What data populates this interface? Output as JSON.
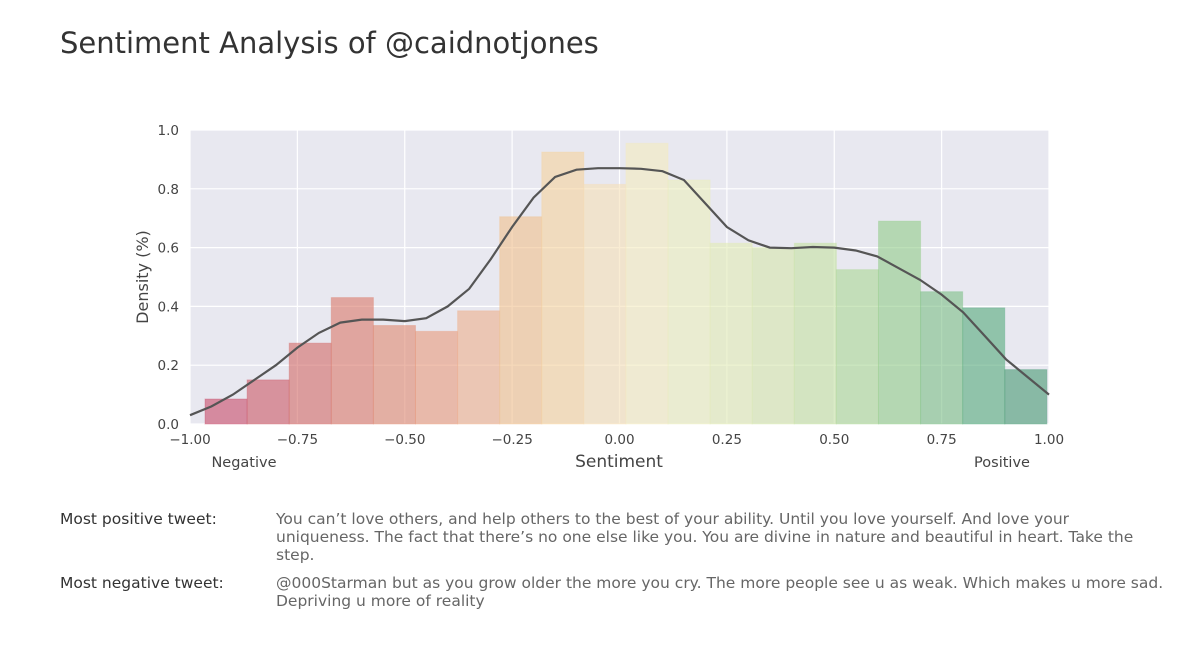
{
  "page": {
    "title": "Sentiment Analysis of @caidnotjones"
  },
  "chart_data": {
    "type": "bar",
    "title": "",
    "xlabel": "Sentiment",
    "ylabel": "Density (%)",
    "xlim": [
      -1.0,
      1.0
    ],
    "ylim": [
      0,
      1.0
    ],
    "x_ticks": [
      -1.0,
      -0.75,
      -0.5,
      -0.25,
      0.0,
      0.25,
      0.5,
      0.75,
      1.0
    ],
    "x_tick_labels": [
      "−1.00",
      "−0.75",
      "−0.50",
      "−0.25",
      "0.00",
      "0.25",
      "0.50",
      "0.75",
      "1.00"
    ],
    "y_ticks": [
      0.0,
      0.2,
      0.4,
      0.6,
      0.8,
      1.0
    ],
    "y_tick_labels": [
      "0.0",
      "0.2",
      "0.4",
      "0.6",
      "0.8",
      "1.0"
    ],
    "grid": true,
    "annotations": {
      "left": "Negative",
      "right": "Positive"
    },
    "histogram": {
      "bins": [
        {
          "x0": -0.965,
          "x1": -0.867,
          "value": 0.085,
          "color": "#c9506e"
        },
        {
          "x0": -0.867,
          "x1": -0.769,
          "value": 0.15,
          "color": "#cd5e6b"
        },
        {
          "x0": -0.769,
          "x1": -0.671,
          "value": 0.275,
          "color": "#d46e6b"
        },
        {
          "x0": -0.671,
          "x1": -0.573,
          "value": 0.43,
          "color": "#db7d6e"
        },
        {
          "x0": -0.573,
          "x1": -0.475,
          "value": 0.335,
          "color": "#e08c75"
        },
        {
          "x0": -0.475,
          "x1": -0.377,
          "value": 0.315,
          "color": "#e89d7f"
        },
        {
          "x0": -0.377,
          "x1": -0.279,
          "value": 0.385,
          "color": "#edb28f"
        },
        {
          "x0": -0.279,
          "x1": -0.181,
          "value": 0.705,
          "color": "#f0c290"
        },
        {
          "x0": -0.181,
          "x1": -0.083,
          "value": 0.925,
          "color": "#f5d3a0"
        },
        {
          "x0": -0.083,
          "x1": 0.015,
          "value": 0.815,
          "color": "#f6e0b8"
        },
        {
          "x0": 0.015,
          "x1": 0.113,
          "value": 0.955,
          "color": "#f3ebc0"
        },
        {
          "x0": 0.113,
          "x1": 0.211,
          "value": 0.83,
          "color": "#ecefbe"
        },
        {
          "x0": 0.211,
          "x1": 0.309,
          "value": 0.615,
          "color": "#e2ecb6"
        },
        {
          "x0": 0.309,
          "x1": 0.407,
          "value": 0.6,
          "color": "#d6e7ae"
        },
        {
          "x0": 0.407,
          "x1": 0.505,
          "value": 0.615,
          "color": "#c6e2a5"
        },
        {
          "x0": 0.505,
          "x1": 0.603,
          "value": 0.525,
          "color": "#add898"
        },
        {
          "x0": 0.603,
          "x1": 0.701,
          "value": 0.69,
          "color": "#94cd8d"
        },
        {
          "x0": 0.701,
          "x1": 0.799,
          "value": 0.45,
          "color": "#7fc089"
        },
        {
          "x0": 0.799,
          "x1": 0.897,
          "value": 0.395,
          "color": "#5aac80"
        },
        {
          "x0": 0.897,
          "x1": 0.995,
          "value": 0.185,
          "color": "#4e9c77"
        }
      ]
    },
    "kde": {
      "color": "#555555",
      "x": [
        -1.0,
        -0.95,
        -0.9,
        -0.85,
        -0.8,
        -0.75,
        -0.7,
        -0.65,
        -0.6,
        -0.55,
        -0.5,
        -0.45,
        -0.4,
        -0.35,
        -0.3,
        -0.25,
        -0.2,
        -0.15,
        -0.1,
        -0.05,
        0.0,
        0.05,
        0.1,
        0.15,
        0.2,
        0.25,
        0.3,
        0.35,
        0.4,
        0.45,
        0.5,
        0.55,
        0.6,
        0.65,
        0.7,
        0.75,
        0.8,
        0.85,
        0.9,
        0.95,
        1.0
      ],
      "y": [
        0.03,
        0.06,
        0.1,
        0.15,
        0.2,
        0.26,
        0.31,
        0.345,
        0.355,
        0.355,
        0.35,
        0.36,
        0.4,
        0.46,
        0.56,
        0.67,
        0.77,
        0.84,
        0.865,
        0.87,
        0.87,
        0.868,
        0.86,
        0.83,
        0.75,
        0.67,
        0.625,
        0.6,
        0.598,
        0.602,
        0.6,
        0.59,
        0.57,
        0.53,
        0.49,
        0.44,
        0.38,
        0.3,
        0.22,
        0.16,
        0.1
      ]
    }
  },
  "tweets": {
    "positive_label": "Most positive tweet:",
    "positive_text": "You can’t love others, and help others to the best of your ability. Until you love yourself. And love your uniqueness. The fact that there’s no one else like you. You are divine in nature and beautiful in heart. Take the step.",
    "negative_label": "Most negative tweet:",
    "negative_text": "@000Starman but as you grow older the more you cry. The more people see u as weak. Which makes u more sad. Depriving u more of reality"
  }
}
